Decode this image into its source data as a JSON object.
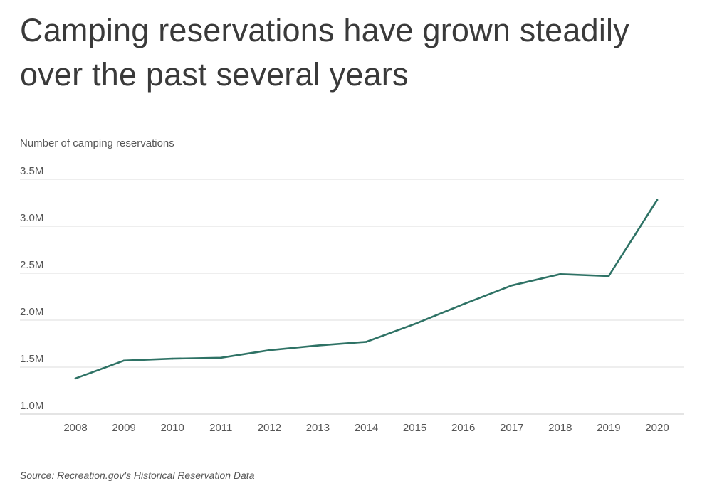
{
  "title": "Camping reservations have grown steadily over the past several years",
  "source": "Source:  Recreation.gov's Historical Reservation Data",
  "chart_data": {
    "type": "line",
    "title": "Camping reservations have grown steadily over the past several years",
    "ylabel": "Number of camping reservations",
    "xlabel": "",
    "x": [
      "2008",
      "2009",
      "2010",
      "2011",
      "2012",
      "2013",
      "2014",
      "2015",
      "2016",
      "2017",
      "2018",
      "2019",
      "2020"
    ],
    "series": [
      {
        "name": "Camping reservations",
        "values": [
          1.38,
          1.57,
          1.59,
          1.6,
          1.68,
          1.73,
          1.77,
          1.96,
          2.17,
          2.37,
          2.49,
          2.47,
          3.28
        ]
      }
    ],
    "ylim": [
      1.0,
      3.5
    ],
    "yticks": [
      1.0,
      1.5,
      2.0,
      2.5,
      3.0,
      3.5
    ],
    "ytick_labels": [
      "1.0M",
      "1.5M",
      "2.0M",
      "2.5M",
      "3.0M",
      "3.5M"
    ],
    "units": "millions",
    "grid": true,
    "line_color": "#2e7265"
  }
}
